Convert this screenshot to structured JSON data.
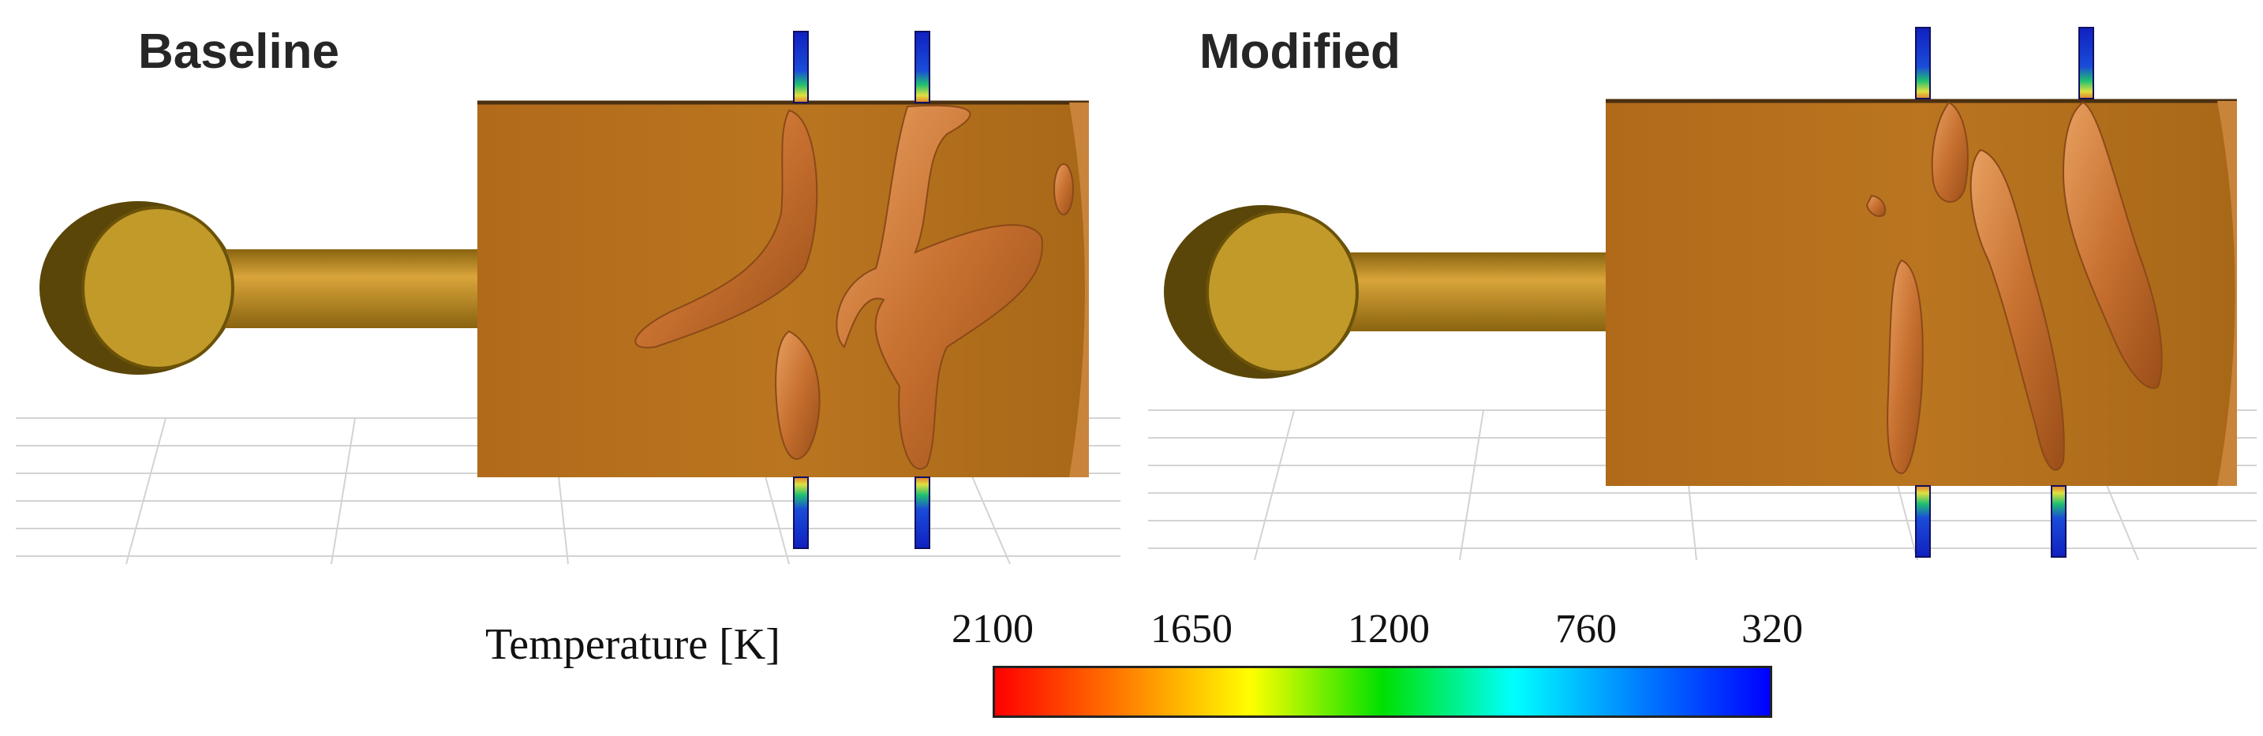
{
  "panels": {
    "left_title": "Baseline",
    "right_title": "Modified"
  },
  "legend": {
    "title": "Temperature [K]",
    "ticks": [
      "2100",
      "1650",
      "1200",
      "760",
      "320"
    ],
    "colors": [
      "#ff0000",
      "#ff8000",
      "#ffff00",
      "#00e000",
      "#00ffff",
      "#0080ff",
      "#0000ff"
    ]
  },
  "colors": {
    "isosurface": "#c8782c",
    "chamber": "#b77422",
    "tube": "#c08a26",
    "floor_grid": "#d5d5d5"
  }
}
